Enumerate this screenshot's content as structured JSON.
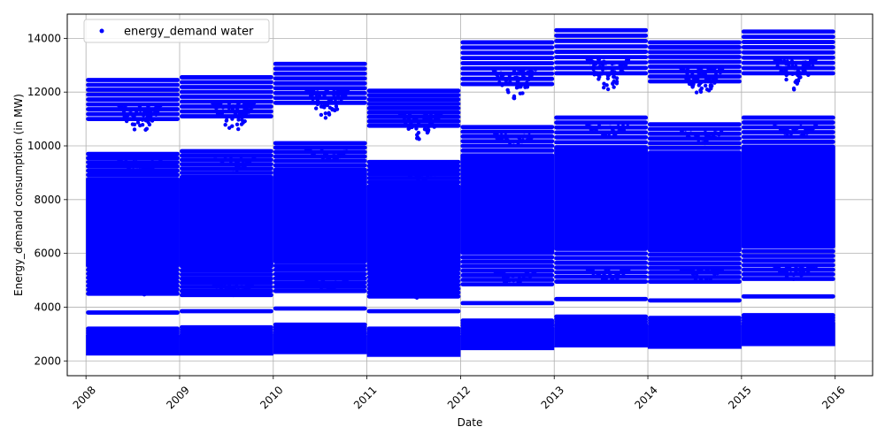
{
  "chart_data": {
    "type": "scatter",
    "title": "",
    "xlabel": "Date",
    "ylabel": "Energy_demand consumption (in MW)",
    "xlim": [
      2007.8,
      2016.4
    ],
    "ylim": [
      1450,
      14900
    ],
    "grid": true,
    "legend_position": "top-left",
    "series_color": "#0000ff",
    "x_ticks": [
      {
        "value": 2008,
        "label": "2008"
      },
      {
        "value": 2009,
        "label": "2009"
      },
      {
        "value": 2010,
        "label": "2010"
      },
      {
        "value": 2011,
        "label": "2011"
      },
      {
        "value": 2012,
        "label": "2012"
      },
      {
        "value": 2013,
        "label": "2013"
      },
      {
        "value": 2014,
        "label": "2014"
      },
      {
        "value": 2015,
        "label": "2015"
      },
      {
        "value": 2016,
        "label": "2016"
      }
    ],
    "y_ticks": [
      {
        "value": 2000,
        "label": "2000"
      },
      {
        "value": 4000,
        "label": "4000"
      },
      {
        "value": 6000,
        "label": "6000"
      },
      {
        "value": 8000,
        "label": "8000"
      },
      {
        "value": 10000,
        "label": "10000"
      },
      {
        "value": 12000,
        "label": "12000"
      },
      {
        "value": 14000,
        "label": "14000"
      }
    ],
    "series": [
      {
        "name": "energy_demand water",
        "yearly_bands": [
          {
            "year": 2008,
            "low_band": [
              2200,
              3200
            ],
            "isolated_level": 3800,
            "mid_band": [
              4500,
              9700
            ],
            "high_band": [
              11000,
              12450
            ]
          },
          {
            "year": 2009,
            "low_band": [
              2200,
              3250
            ],
            "isolated_level": 3850,
            "mid_band": [
              4450,
              9800
            ],
            "high_band": [
              11100,
              12550
            ]
          },
          {
            "year": 2010,
            "low_band": [
              2250,
              3350
            ],
            "isolated_level": 3950,
            "mid_band": [
              4600,
              10100
            ],
            "high_band": [
              11600,
              13050
            ]
          },
          {
            "year": 2011,
            "low_band": [
              2150,
              3200
            ],
            "isolated_level": 3850,
            "mid_band": [
              4400,
              9400
            ],
            "high_band": [
              10750,
              12050
            ]
          },
          {
            "year": 2012,
            "low_band": [
              2400,
              3500
            ],
            "isolated_level": 4150,
            "mid_band": [
              4850,
              10700
            ],
            "high_band": [
              12300,
              13850
            ]
          },
          {
            "year": 2013,
            "low_band": [
              2500,
              3650
            ],
            "isolated_level": 4300,
            "mid_band": [
              4950,
              11050
            ],
            "high_band": [
              12700,
              14300
            ]
          },
          {
            "year": 2014,
            "low_band": [
              2450,
              3600
            ],
            "isolated_level": 4250,
            "mid_band": [
              4950,
              10800
            ],
            "high_band": [
              12400,
              13850
            ]
          },
          {
            "year": 2015,
            "low_band": [
              2550,
              3700
            ],
            "isolated_level": 4400,
            "mid_band": [
              5050,
              11050
            ],
            "high_band": [
              12700,
              14250
            ]
          }
        ]
      }
    ]
  }
}
